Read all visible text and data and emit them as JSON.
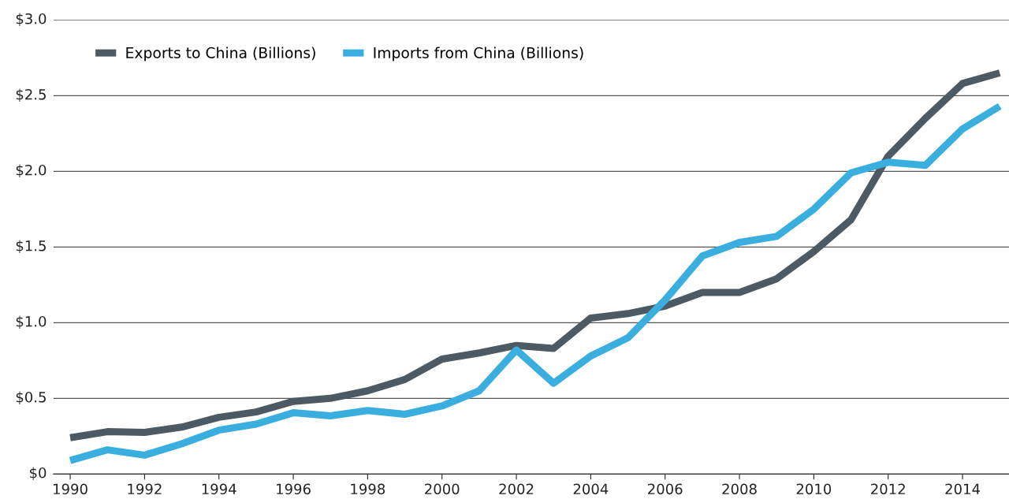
{
  "chart_data": {
    "type": "line",
    "x": [
      1990,
      1991,
      1992,
      1993,
      1994,
      1995,
      1996,
      1997,
      1998,
      1999,
      2000,
      2001,
      2002,
      2003,
      2004,
      2005,
      2006,
      2007,
      2008,
      2009,
      2010,
      2011,
      2012,
      2013,
      2014,
      2015
    ],
    "series": [
      {
        "name": "Exports to China (Billions)",
        "color": "#4d5a63",
        "values": [
          0.24,
          0.28,
          0.275,
          0.31,
          0.375,
          0.41,
          0.48,
          0.5,
          0.55,
          0.625,
          0.76,
          0.8,
          0.85,
          0.83,
          1.03,
          1.06,
          1.11,
          1.2,
          1.2,
          1.29,
          1.47,
          1.68,
          2.1,
          2.35,
          2.58,
          2.65
        ]
      },
      {
        "name": "Imports from China (Billions)",
        "color": "#3aaede",
        "values": [
          0.09,
          0.16,
          0.125,
          0.2,
          0.29,
          0.33,
          0.405,
          0.385,
          0.42,
          0.395,
          0.45,
          0.55,
          0.82,
          0.6,
          0.78,
          0.9,
          1.15,
          1.44,
          1.53,
          1.57,
          1.75,
          1.99,
          2.06,
          2.04,
          2.28,
          2.43
        ]
      }
    ],
    "xlim": [
      1989.55,
      2015.25
    ],
    "xticks": [
      1990,
      1992,
      1994,
      1996,
      1998,
      2000,
      2002,
      2004,
      2006,
      2008,
      2010,
      2012,
      2014
    ],
    "ylim": [
      0,
      3.0
    ],
    "yticks": [
      {
        "value": 0,
        "label": "$0"
      },
      {
        "value": 0.5,
        "label": "$0.5"
      },
      {
        "value": 1.0,
        "label": "$1.0"
      },
      {
        "value": 1.5,
        "label": "$1.5"
      },
      {
        "value": 2.0,
        "label": "$2.0"
      },
      {
        "value": 2.5,
        "label": "$2.5"
      },
      {
        "value": 3.0,
        "label": "$3.0"
      }
    ],
    "grid": "y",
    "legend": "top left",
    "marker": "none",
    "line_style": "solid"
  }
}
